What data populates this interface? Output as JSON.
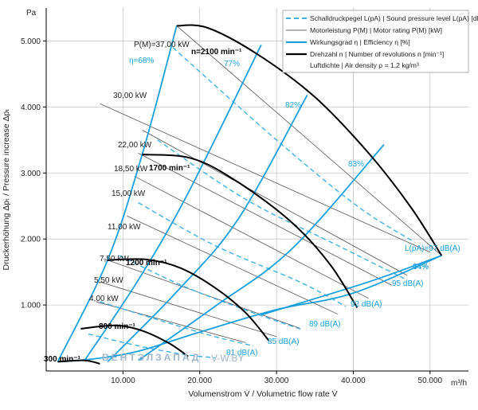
{
  "chart_data": {
    "type": "line",
    "title": "",
    "xlabel": "Volumenstrom V̇ / Volumetric flow rate V̇",
    "ylabel": "Druckerhöhung Δpₜ / Pressure increase Δpₜ",
    "x_unit": "m³/h",
    "y_unit": "Pa",
    "xlim": [
      0,
      55000
    ],
    "ylim": [
      0,
      5500
    ],
    "x_ticks": [
      10000,
      20000,
      30000,
      40000,
      50000
    ],
    "x_tick_labels": [
      "10.000",
      "20.000",
      "30.000",
      "40.000",
      "50.000"
    ],
    "y_ticks": [
      1000,
      2000,
      3000,
      4000,
      5000
    ],
    "y_tick_labels": [
      "1.000",
      "2.000",
      "3.000",
      "4.000",
      "5.000"
    ],
    "grid": true,
    "legend_position": "top-right",
    "legend": [
      {
        "style": "dashed-blue",
        "text": "Schalldruckpegel L(pA) | Sound pressure level L(pA) [dB(A)]"
      },
      {
        "style": "thin-gray",
        "text": "Motorleistung P(M) | Motor rating P(M) [kW]"
      },
      {
        "style": "thick-blue",
        "text": "Wirkungsgrad η | Efficiency η [%]"
      },
      {
        "style": "thick-black",
        "text": "Drehzahl n | Number of revolutions n [min⁻¹]"
      },
      {
        "style": "none",
        "text": "Luftdichte | Air density ρ = 1,2 kg/m³"
      }
    ],
    "speed_curves": [
      {
        "label": "300 min⁻¹",
        "points": [
          [
            1500,
            140
          ],
          [
            5000,
            160
          ],
          [
            7000,
            110
          ]
        ]
      },
      {
        "label": "800 min⁻¹",
        "points": [
          [
            4500,
            640
          ],
          [
            9000,
            690
          ],
          [
            12500,
            610
          ],
          [
            16000,
            420
          ],
          [
            18500,
            220
          ]
        ]
      },
      {
        "label": "1200 min⁻¹",
        "points": [
          [
            8000,
            1680
          ],
          [
            13000,
            1690
          ],
          [
            17500,
            1560
          ],
          [
            22000,
            1260
          ],
          [
            26000,
            880
          ],
          [
            29000,
            460
          ]
        ]
      },
      {
        "label": "1700 min⁻¹",
        "points": [
          [
            12500,
            3280
          ],
          [
            19000,
            3220
          ],
          [
            25000,
            2860
          ],
          [
            32000,
            2250
          ],
          [
            37000,
            1610
          ],
          [
            40500,
            960
          ]
        ]
      },
      {
        "label": "2100 min⁻¹",
        "points": [
          [
            17000,
            5230
          ],
          [
            21000,
            5200
          ],
          [
            27500,
            4800
          ],
          [
            35000,
            4150
          ],
          [
            42000,
            3300
          ],
          [
            47500,
            2480
          ],
          [
            51500,
            1750
          ]
        ]
      }
    ],
    "system_curve": {
      "points": [
        [
          1500,
          140
        ],
        [
          6000,
          180
        ],
        [
          12000,
          300
        ],
        [
          20000,
          590
        ],
        [
          30000,
          930
        ],
        [
          40000,
          1180
        ],
        [
          51500,
          1750
        ]
      ]
    },
    "efficiency_curves": [
      {
        "label": "η=68%",
        "points": [
          [
            1500,
            140
          ],
          [
            8000,
            1680
          ],
          [
            12500,
            3280
          ],
          [
            17000,
            5230
          ]
        ]
      },
      {
        "label": "77%",
        "points": [
          [
            5000,
            160
          ],
          [
            12000,
            1380
          ],
          [
            18500,
            2700
          ],
          [
            28000,
            4940
          ]
        ]
      },
      {
        "label": "82%",
        "points": [
          [
            8000,
            140
          ],
          [
            17000,
            1200
          ],
          [
            25000,
            2300
          ],
          [
            34000,
            4180
          ]
        ]
      },
      {
        "label": "83%",
        "points": [
          [
            12000,
            160
          ],
          [
            22000,
            980
          ],
          [
            32000,
            1850
          ],
          [
            44000,
            3430
          ]
        ]
      },
      {
        "label": "64%",
        "points": [
          [
            28000,
            850
          ],
          [
            42000,
            1350
          ],
          [
            51500,
            1750
          ]
        ]
      }
    ],
    "power_lines": [
      {
        "label": "37,00 kW",
        "points": [
          [
            17000,
            5230
          ],
          [
            51500,
            1750
          ]
        ]
      },
      {
        "label": "30,00 kW",
        "points": [
          [
            7000,
            4050
          ],
          [
            50000,
            1800
          ]
        ]
      },
      {
        "label": "22,00 kW",
        "points": [
          [
            12500,
            3650
          ],
          [
            47000,
            1450
          ]
        ]
      },
      {
        "label": "18,50 kW",
        "points": [
          [
            12000,
            3300
          ],
          [
            45000,
            1300
          ]
        ]
      },
      {
        "label": "15,00 kW",
        "points": [
          [
            11500,
            2950
          ],
          [
            42000,
            1100
          ]
        ]
      },
      {
        "label": "11,00 kW",
        "points": [
          [
            10500,
            2350
          ],
          [
            38000,
            860
          ]
        ]
      },
      {
        "label": "7,50 kW",
        "points": [
          [
            7500,
            1700
          ],
          [
            33000,
            650
          ]
        ]
      },
      {
        "label": "5,50 kW",
        "points": [
          [
            7000,
            1350
          ],
          [
            30000,
            520
          ]
        ]
      },
      {
        "label": "4,00 kW",
        "points": [
          [
            6500,
            1050
          ],
          [
            26000,
            430
          ]
        ]
      }
    ],
    "sound_curves": [
      {
        "label": "L(pA)=97 dB(A)",
        "points": [
          [
            16500,
            4900
          ],
          [
            30000,
            3500
          ],
          [
            40500,
            2500
          ],
          [
            48000,
            1950
          ]
        ]
      },
      {
        "label": "95 dB(A)",
        "points": [
          [
            14500,
            3500
          ],
          [
            26000,
            2600
          ],
          [
            38000,
            1900
          ],
          [
            47000,
            1380
          ]
        ]
      },
      {
        "label": "92 dB(A)",
        "points": [
          [
            12000,
            2550
          ],
          [
            22000,
            1900
          ],
          [
            33000,
            1350
          ],
          [
            39000,
            980
          ]
        ]
      },
      {
        "label": "89 dB(A)",
        "points": [
          [
            9500,
            1750
          ],
          [
            18000,
            1280
          ],
          [
            27000,
            880
          ],
          [
            33500,
            620
          ]
        ]
      },
      {
        "label": "85 dB(A)",
        "points": [
          [
            7000,
            1050
          ],
          [
            15000,
            760
          ],
          [
            22000,
            520
          ],
          [
            27000,
            380
          ]
        ]
      },
      {
        "label": "81 dB(A)",
        "points": [
          [
            5500,
            560
          ],
          [
            12000,
            380
          ],
          [
            18000,
            250
          ],
          [
            22000,
            200
          ]
        ]
      }
    ],
    "annotations": [
      {
        "text": "P(M)=37,00 kW"
      },
      {
        "text": "n=2100 min⁻¹"
      }
    ]
  },
  "watermark": {
    "brand": "ВЕНТЭЛЗАПАД",
    "site": "V-W.BY"
  },
  "colors": {
    "efficiency": "#1aa0dd",
    "sound": "#3fb2e6",
    "power": "#555555",
    "speed": "#000000",
    "grid": "#c8c8c8",
    "axis": "#000000"
  }
}
